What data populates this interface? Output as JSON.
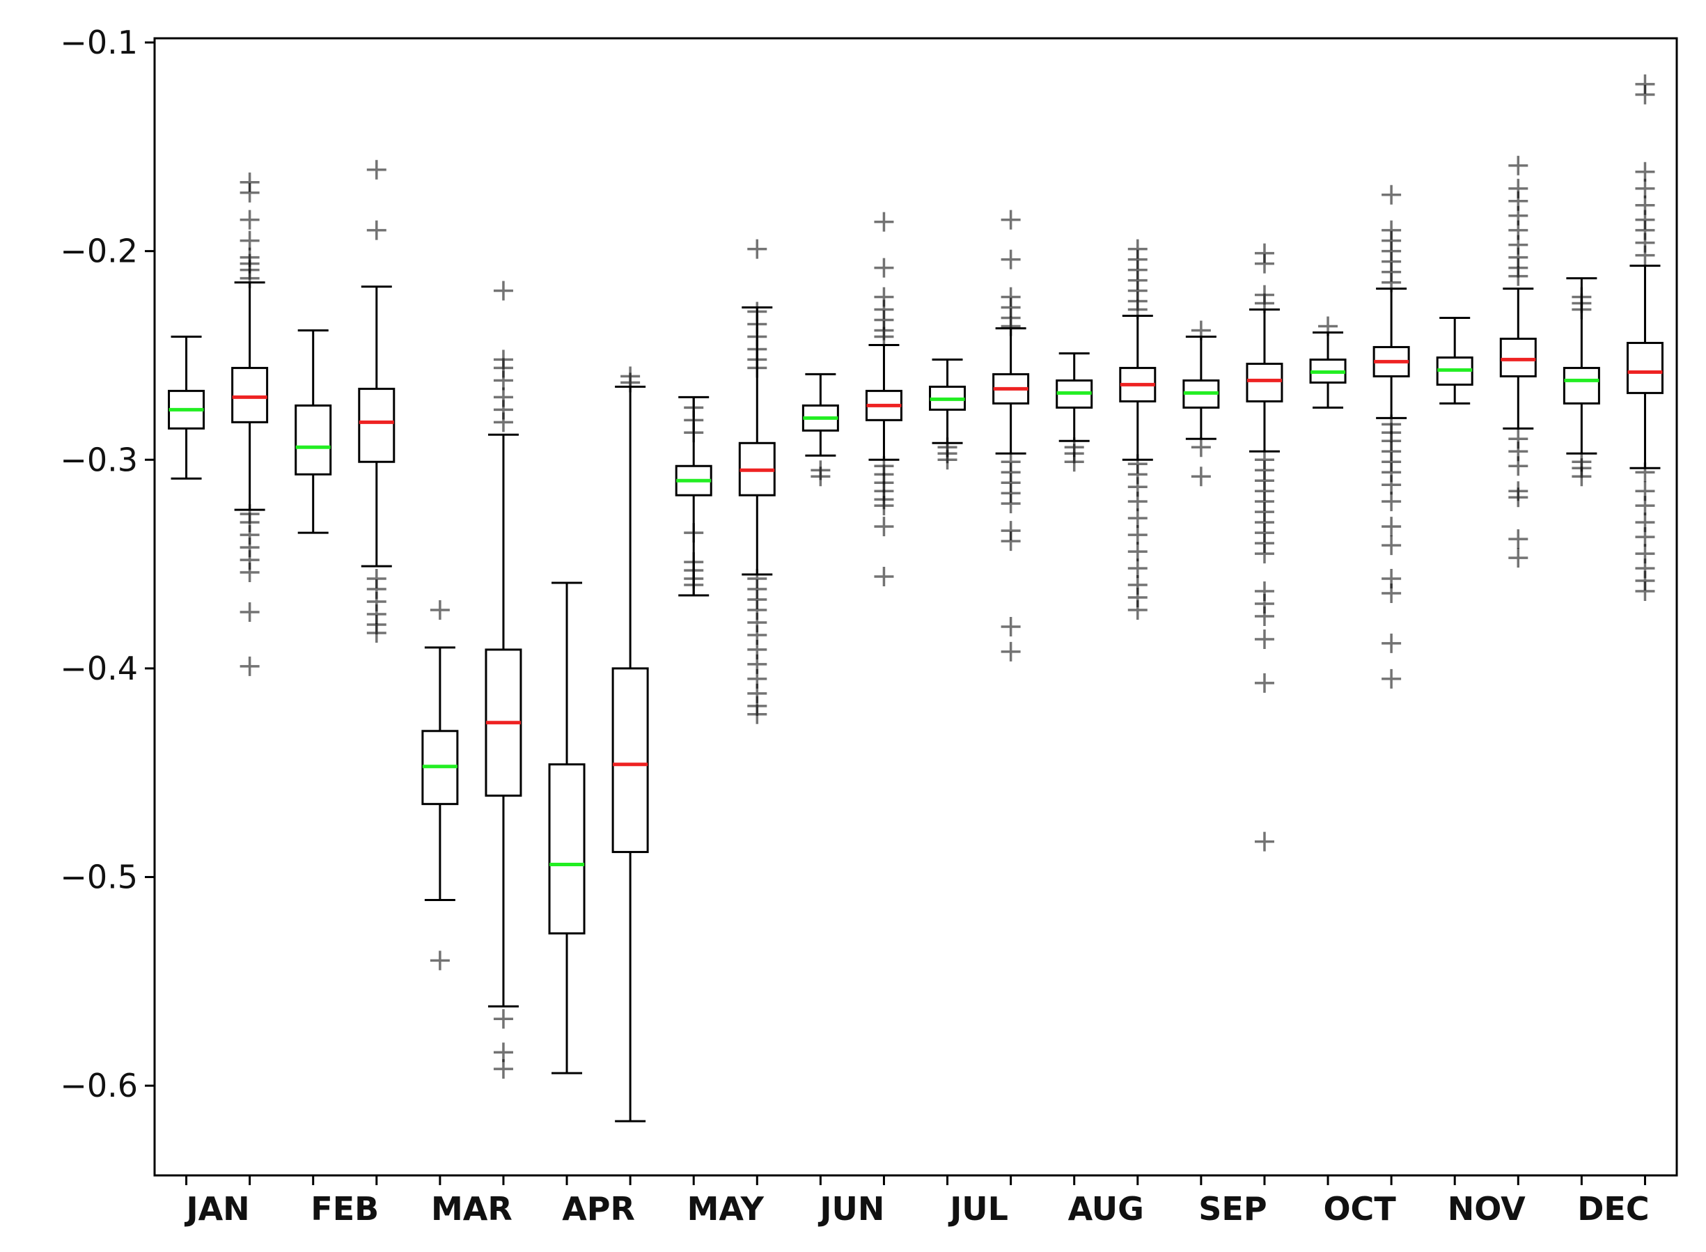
{
  "chart_data": {
    "type": "box",
    "categories": [
      "JAN",
      "FEB",
      "MAR",
      "APR",
      "MAY",
      "JUN",
      "JUL",
      "AUG",
      "SEP",
      "OCT",
      "NOV",
      "DEC"
    ],
    "ylim": [
      -0.643,
      -0.098
    ],
    "yticks": [
      -0.1,
      -0.2,
      -0.3,
      -0.4,
      -0.5,
      -0.6
    ],
    "ytick_labels": [
      "−0.1",
      "−0.2",
      "−0.3",
      "−0.4",
      "−0.5",
      "−0.6"
    ],
    "grid": false,
    "series": [
      {
        "median_color": "#22ee22",
        "boxes": [
          {
            "whisker_low": -0.309,
            "q1": -0.285,
            "median": -0.276,
            "q3": -0.267,
            "whisker_high": -0.241,
            "outliers": []
          },
          {
            "whisker_low": -0.335,
            "q1": -0.307,
            "median": -0.294,
            "q3": -0.274,
            "whisker_high": -0.238,
            "outliers": []
          },
          {
            "whisker_low": -0.511,
            "q1": -0.465,
            "median": -0.447,
            "q3": -0.43,
            "whisker_high": -0.39,
            "outliers": [
              -0.372,
              -0.54
            ]
          },
          {
            "whisker_low": -0.594,
            "q1": -0.527,
            "median": -0.494,
            "q3": -0.446,
            "whisker_high": -0.359,
            "outliers": []
          },
          {
            "whisker_low": -0.365,
            "q1": -0.317,
            "median": -0.31,
            "q3": -0.303,
            "whisker_high": -0.27,
            "outliers": [
              -0.275,
              -0.281,
              -0.287,
              -0.335,
              -0.349,
              -0.353,
              -0.357,
              -0.36
            ]
          },
          {
            "whisker_low": -0.298,
            "q1": -0.286,
            "median": -0.28,
            "q3": -0.274,
            "whisker_high": -0.259,
            "outliers": [
              -0.305,
              -0.308
            ]
          },
          {
            "whisker_low": -0.292,
            "q1": -0.276,
            "median": -0.271,
            "q3": -0.265,
            "whisker_high": -0.252,
            "outliers": [
              -0.294,
              -0.297,
              -0.3
            ]
          },
          {
            "whisker_low": -0.291,
            "q1": -0.275,
            "median": -0.268,
            "q3": -0.262,
            "whisker_high": -0.249,
            "outliers": [
              -0.294,
              -0.297,
              -0.301
            ]
          },
          {
            "whisker_low": -0.29,
            "q1": -0.275,
            "median": -0.268,
            "q3": -0.262,
            "whisker_high": -0.241,
            "outliers": [
              -0.238,
              -0.294,
              -0.308
            ]
          },
          {
            "whisker_low": -0.275,
            "q1": -0.263,
            "median": -0.258,
            "q3": -0.252,
            "whisker_high": -0.239,
            "outliers": [
              -0.236
            ]
          },
          {
            "whisker_low": -0.273,
            "q1": -0.264,
            "median": -0.257,
            "q3": -0.251,
            "whisker_high": -0.232,
            "outliers": []
          },
          {
            "whisker_low": -0.297,
            "q1": -0.273,
            "median": -0.262,
            "q3": -0.256,
            "whisker_high": -0.213,
            "outliers": [
              -0.222,
              -0.225,
              -0.228,
              -0.301,
              -0.304,
              -0.308
            ]
          }
        ]
      },
      {
        "median_color": "#ee2222",
        "boxes": [
          {
            "whisker_low": -0.324,
            "q1": -0.282,
            "median": -0.27,
            "q3": -0.256,
            "whisker_high": -0.215,
            "outliers": [
              -0.167,
              -0.172,
              -0.185,
              -0.195,
              -0.203,
              -0.206,
              -0.209,
              -0.213,
              -0.326,
              -0.33,
              -0.336,
              -0.342,
              -0.348,
              -0.354,
              -0.373,
              -0.399
            ]
          },
          {
            "whisker_low": -0.351,
            "q1": -0.301,
            "median": -0.282,
            "q3": -0.266,
            "whisker_high": -0.217,
            "outliers": [
              -0.161,
              -0.19,
              -0.357,
              -0.362,
              -0.368,
              -0.374,
              -0.379,
              -0.383
            ]
          },
          {
            "whisker_low": -0.562,
            "q1": -0.461,
            "median": -0.426,
            "q3": -0.391,
            "whisker_high": -0.288,
            "outliers": [
              -0.219,
              -0.252,
              -0.256,
              -0.262,
              -0.27,
              -0.276,
              -0.282,
              -0.568,
              -0.584,
              -0.592
            ]
          },
          {
            "whisker_low": -0.617,
            "q1": -0.488,
            "median": -0.446,
            "q3": -0.4,
            "whisker_high": -0.265,
            "outliers": [
              -0.26,
              -0.263
            ]
          },
          {
            "whisker_low": -0.355,
            "q1": -0.317,
            "median": -0.305,
            "q3": -0.292,
            "whisker_high": -0.227,
            "outliers": [
              -0.199,
              -0.229,
              -0.235,
              -0.241,
              -0.247,
              -0.252,
              -0.256,
              -0.357,
              -0.362,
              -0.367,
              -0.372,
              -0.378,
              -0.384,
              -0.391,
              -0.398,
              -0.405,
              -0.412,
              -0.418,
              -0.422
            ]
          },
          {
            "whisker_low": -0.3,
            "q1": -0.281,
            "median": -0.274,
            "q3": -0.267,
            "whisker_high": -0.245,
            "outliers": [
              -0.186,
              -0.208,
              -0.222,
              -0.228,
              -0.233,
              -0.238,
              -0.241,
              -0.303,
              -0.307,
              -0.311,
              -0.315,
              -0.319,
              -0.322,
              -0.332,
              -0.356
            ]
          },
          {
            "whisker_low": -0.297,
            "q1": -0.273,
            "median": -0.266,
            "q3": -0.259,
            "whisker_high": -0.237,
            "outliers": [
              -0.185,
              -0.204,
              -0.222,
              -0.227,
              -0.232,
              -0.236,
              -0.301,
              -0.306,
              -0.311,
              -0.316,
              -0.321,
              -0.334,
              -0.339,
              -0.38,
              -0.392
            ]
          },
          {
            "whisker_low": -0.3,
            "q1": -0.272,
            "median": -0.264,
            "q3": -0.256,
            "whisker_high": -0.231,
            "outliers": [
              -0.199,
              -0.204,
              -0.209,
              -0.214,
              -0.219,
              -0.224,
              -0.228,
              -0.302,
              -0.307,
              -0.313,
              -0.32,
              -0.328,
              -0.336,
              -0.344,
              -0.352,
              -0.36,
              -0.366,
              -0.372
            ]
          },
          {
            "whisker_low": -0.296,
            "q1": -0.272,
            "median": -0.262,
            "q3": -0.254,
            "whisker_high": -0.228,
            "outliers": [
              -0.201,
              -0.206,
              -0.221,
              -0.225,
              -0.3,
              -0.305,
              -0.31,
              -0.315,
              -0.32,
              -0.325,
              -0.33,
              -0.335,
              -0.34,
              -0.345,
              -0.363,
              -0.369,
              -0.375,
              -0.386,
              -0.407,
              -0.483
            ]
          },
          {
            "whisker_low": -0.28,
            "q1": -0.26,
            "median": -0.253,
            "q3": -0.246,
            "whisker_high": -0.218,
            "outliers": [
              -0.173,
              -0.19,
              -0.195,
              -0.2,
              -0.205,
              -0.21,
              -0.215,
              -0.283,
              -0.287,
              -0.291,
              -0.296,
              -0.301,
              -0.306,
              -0.312,
              -0.32,
              -0.332,
              -0.341,
              -0.357,
              -0.364,
              -0.388,
              -0.405
            ]
          },
          {
            "whisker_low": -0.285,
            "q1": -0.26,
            "median": -0.252,
            "q3": -0.242,
            "whisker_high": -0.218,
            "outliers": [
              -0.159,
              -0.17,
              -0.176,
              -0.183,
              -0.19,
              -0.197,
              -0.203,
              -0.208,
              -0.212,
              -0.29,
              -0.296,
              -0.303,
              -0.315,
              -0.318,
              -0.338,
              -0.347
            ]
          },
          {
            "whisker_low": -0.304,
            "q1": -0.268,
            "median": -0.258,
            "q3": -0.244,
            "whisker_high": -0.207,
            "outliers": [
              -0.12,
              -0.125,
              -0.162,
              -0.17,
              -0.178,
              -0.185,
              -0.19,
              -0.196,
              -0.202,
              -0.306,
              -0.315,
              -0.322,
              -0.33,
              -0.337,
              -0.345,
              -0.352,
              -0.358,
              -0.363
            ]
          }
        ]
      }
    ]
  }
}
